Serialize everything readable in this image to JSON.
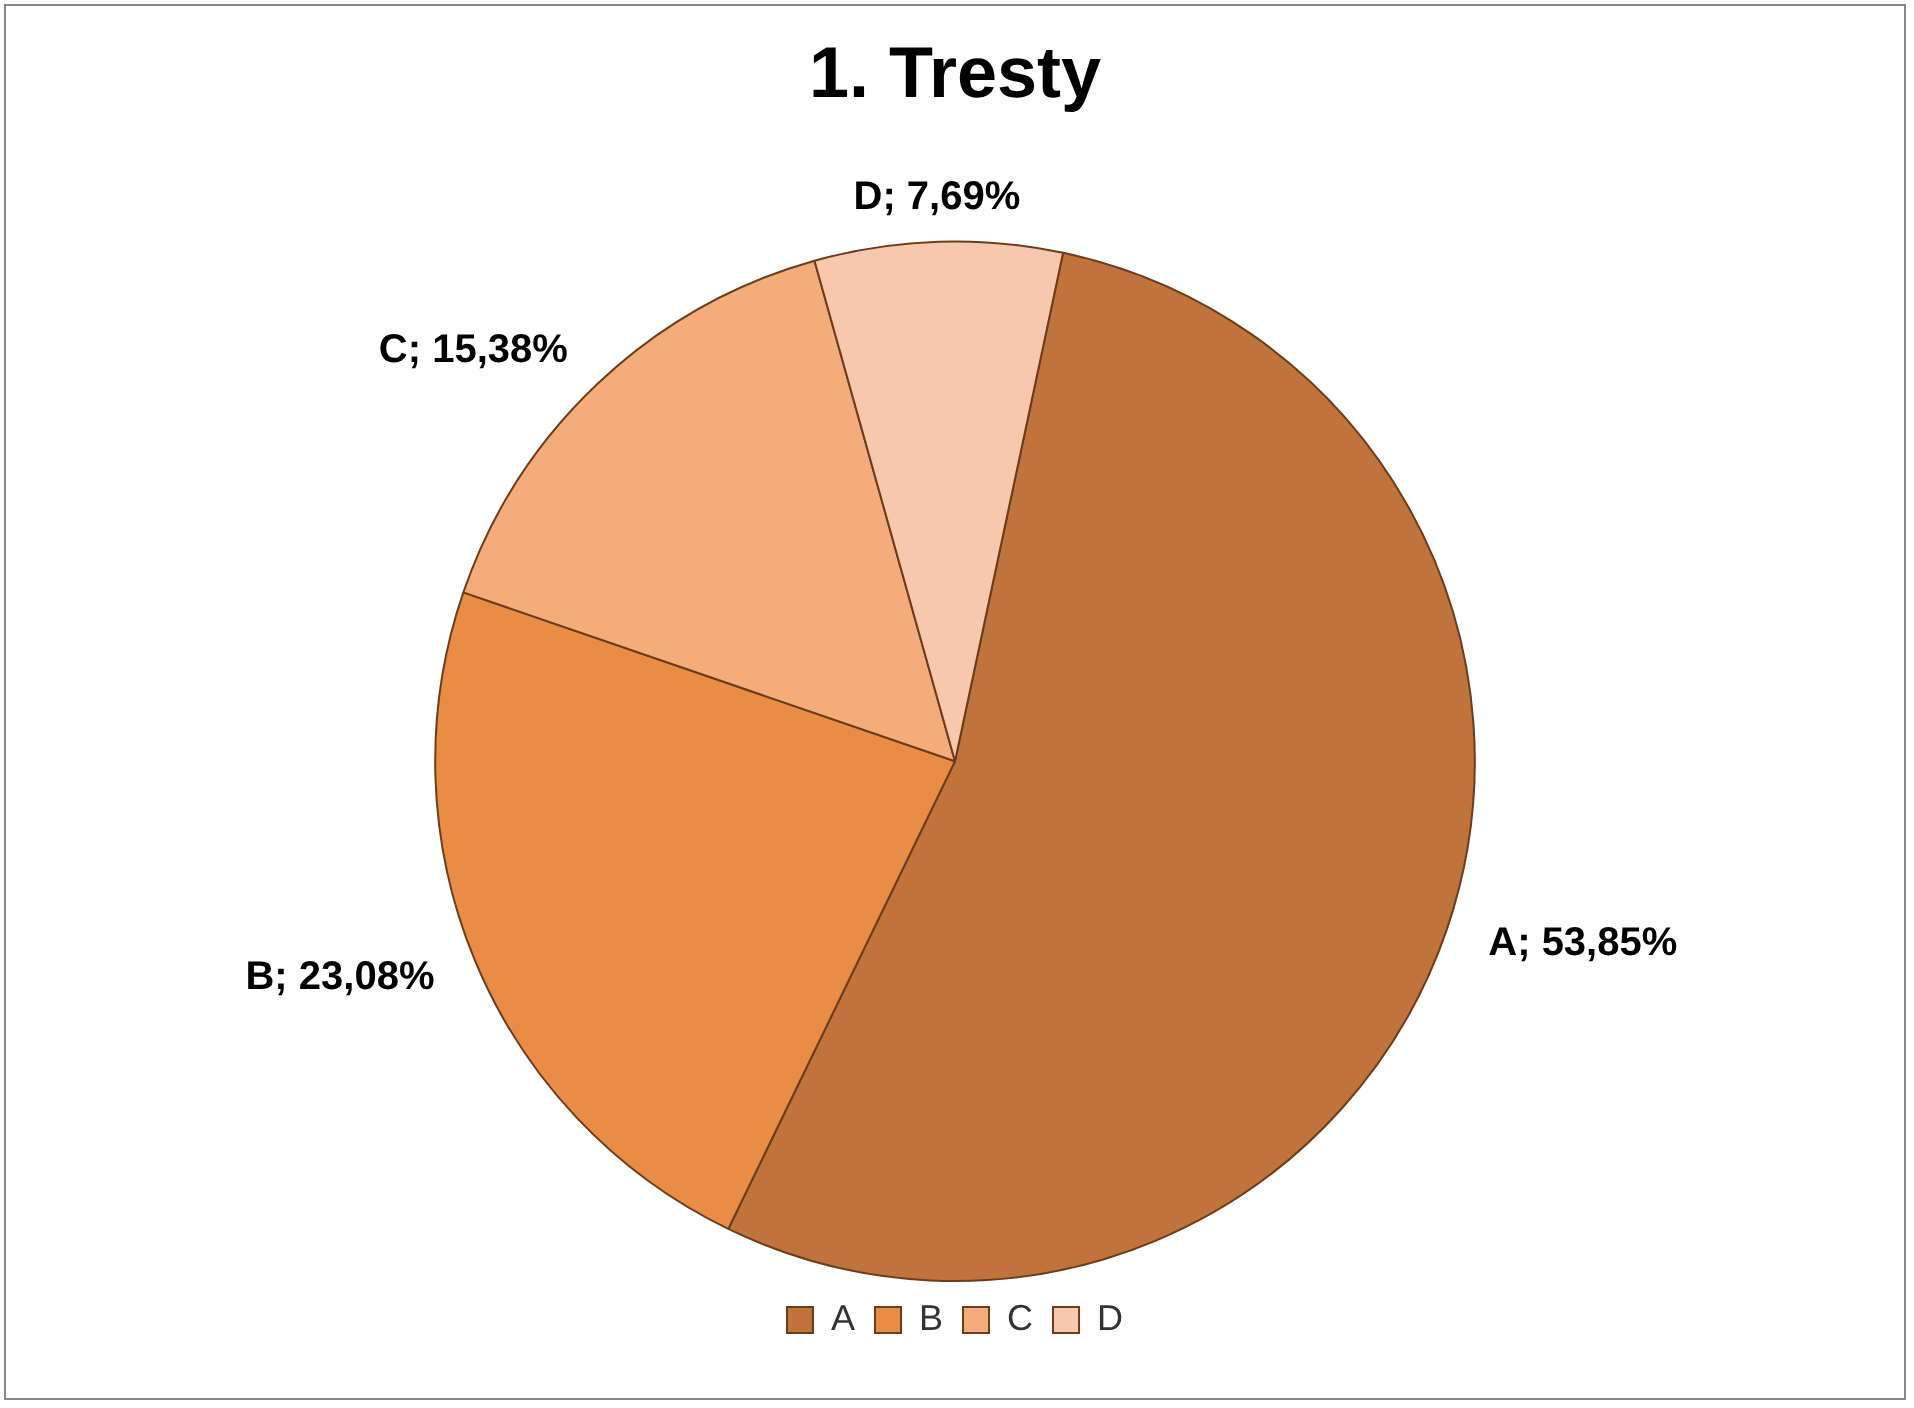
{
  "chart_data": {
    "type": "pie",
    "title": "1. Tresty",
    "categories": [
      "A",
      "B",
      "C",
      "D"
    ],
    "values": [
      53.85,
      23.08,
      15.38,
      7.69
    ],
    "colors": [
      "#c0733a",
      "#e98c45",
      "#f4ac7b",
      "#f8c8ae"
    ],
    "value_labels": [
      "A; 53,85%",
      "B; 23,08%",
      "C; 15,38%",
      "D; 7,69%"
    ],
    "legend": "bottom"
  }
}
